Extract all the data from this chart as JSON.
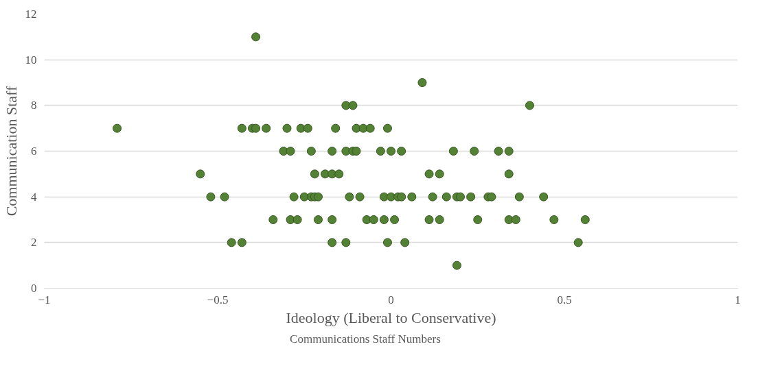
{
  "chart_data": {
    "type": "scatter",
    "xlabel": "Ideology (Liberal to Conservative)",
    "ylabel": "Communication Staff",
    "xlim": [
      -1,
      1
    ],
    "xticks": [
      -1,
      -0.5,
      0,
      0.5,
      1
    ],
    "ylim": [
      0,
      12
    ],
    "yticks": [
      0,
      2,
      4,
      6,
      8,
      10,
      12
    ],
    "grid": "y",
    "legend": "bottom",
    "marker": "circle",
    "series": [
      {
        "name": "Communications Staff Numbers",
        "color": "#548235",
        "x": [
          -0.39,
          0.09,
          -0.13,
          -0.11,
          0.4,
          -0.79,
          -0.43,
          -0.4,
          -0.39,
          -0.36,
          -0.3,
          -0.26,
          -0.24,
          -0.16,
          -0.1,
          -0.08,
          -0.06,
          -0.01,
          -0.31,
          -0.29,
          -0.23,
          -0.17,
          -0.13,
          -0.11,
          -0.1,
          -0.03,
          0.0,
          0.03,
          0.18,
          0.24,
          0.31,
          0.34,
          -0.55,
          -0.22,
          -0.19,
          -0.17,
          -0.15,
          0.11,
          0.14,
          0.34,
          -0.52,
          -0.48,
          -0.28,
          -0.25,
          -0.23,
          -0.22,
          -0.21,
          -0.12,
          -0.09,
          -0.02,
          0.0,
          0.02,
          0.03,
          0.06,
          0.12,
          0.16,
          0.19,
          0.2,
          0.23,
          0.28,
          0.29,
          0.37,
          0.44,
          -0.34,
          -0.29,
          -0.27,
          -0.21,
          -0.17,
          -0.07,
          -0.05,
          -0.02,
          0.01,
          0.11,
          0.14,
          0.25,
          0.34,
          0.36,
          0.47,
          0.56,
          -0.46,
          -0.43,
          -0.17,
          -0.13,
          -0.01,
          0.04,
          0.54,
          0.19
        ],
        "values": [
          11,
          9,
          8,
          8,
          8,
          7,
          7,
          7,
          7,
          7,
          7,
          7,
          7,
          7,
          7,
          7,
          7,
          7,
          6,
          6,
          6,
          6,
          6,
          6,
          6,
          6,
          6,
          6,
          6,
          6,
          6,
          6,
          5,
          5,
          5,
          5,
          5,
          5,
          5,
          5,
          4,
          4,
          4,
          4,
          4,
          4,
          4,
          4,
          4,
          4,
          4,
          4,
          4,
          4,
          4,
          4,
          4,
          4,
          4,
          4,
          4,
          4,
          4,
          3,
          3,
          3,
          3,
          3,
          3,
          3,
          3,
          3,
          3,
          3,
          3,
          3,
          3,
          3,
          3,
          2,
          2,
          2,
          2,
          2,
          2,
          2,
          1
        ]
      }
    ]
  }
}
